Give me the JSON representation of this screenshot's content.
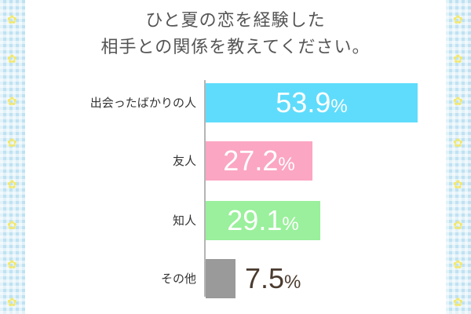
{
  "title": {
    "line1": "ひと夏の恋を経験した",
    "line2": "相手との関係を教えてください。"
  },
  "colors": {
    "bars": [
      "#5fdcfc",
      "#fba6c2",
      "#9af09c",
      "#9a9a9a"
    ],
    "value_text_inside": "#ffffff",
    "value_text_outside": "#4a3b2f",
    "axis": "#b5b5b5",
    "border_blue": "#bfe2f2",
    "flower": "#f4e86a"
  },
  "decor_icon": "flower-icon",
  "chart_data": {
    "type": "bar",
    "orientation": "horizontal",
    "categories": [
      "出会ったばかりの人",
      "友人",
      "知人",
      "その他"
    ],
    "values": [
      53.9,
      27.2,
      29.1,
      7.5
    ],
    "value_labels": [
      "53.9",
      "27.2",
      "29.1",
      "7.5"
    ],
    "unit": "%",
    "xlim": [
      0,
      55
    ],
    "grid": false,
    "legend": "none"
  }
}
